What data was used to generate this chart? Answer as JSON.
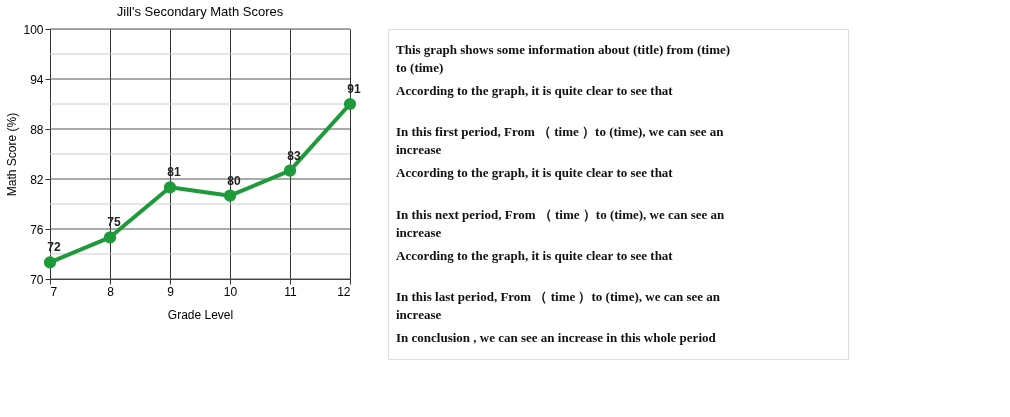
{
  "chart_data": {
    "type": "line",
    "title": "Jill's Secondary Math Scores",
    "xlabel": "Grade Level",
    "ylabel": "Math Score (%)",
    "x": [
      7,
      8,
      9,
      10,
      11,
      12
    ],
    "series": [
      {
        "color": "#1e9a3a",
        "values": [
          72,
          75,
          81,
          80,
          83,
          91
        ]
      }
    ],
    "xlim": [
      7,
      12
    ],
    "xticks": [
      7,
      8,
      9,
      10,
      11,
      12
    ],
    "ylim": [
      70,
      100
    ],
    "yticks": [
      70,
      {
        "value": 73,
        "label": null
      },
      76,
      {
        "value": 79,
        "label": null
      },
      82,
      {
        "value": 85,
        "label": null
      },
      88,
      {
        "value": 91,
        "label": null
      },
      94,
      {
        "value": 97,
        "label": null
      },
      100
    ],
    "grid": true,
    "marker": "circle",
    "line_style": "solid",
    "data_labels": true,
    "annotations": [
      "This graph shows some information about (title) from (time) to (time)",
      "According to the graph, it is quite clear to see that",
      "In this first period, From （ time ）to (time), we can see an increase",
      "According to the graph, it is quite clear to see that",
      "In this next period, From （ time ）to (time), we can see an increase",
      "According to the graph, it is quite clear to see that",
      "In this last period, From （ time ）to (time), we can see an increase",
      "In conclusion , we can see an increase in this whole period"
    ]
  }
}
